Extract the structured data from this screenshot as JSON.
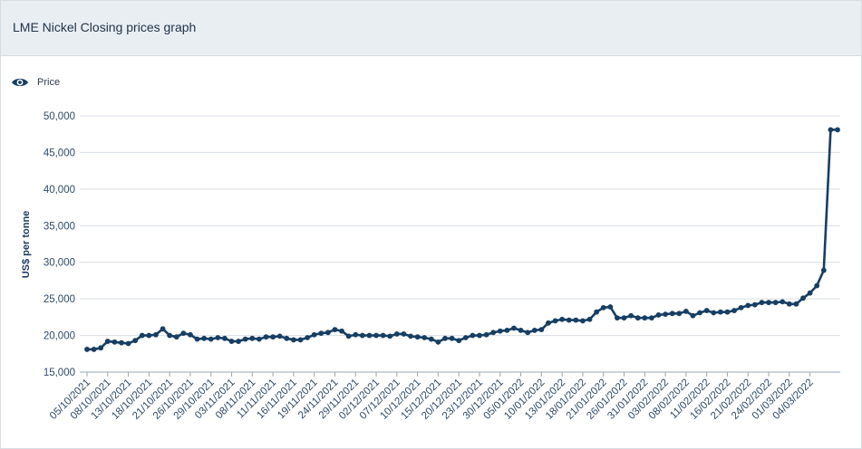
{
  "header": {
    "title": "LME Nickel Closing prices graph"
  },
  "legend": {
    "label": "Price",
    "icon": "eye-icon"
  },
  "colors": {
    "series": "#173e63",
    "grid": "#d9dee4",
    "axis": "#9aa7b4",
    "header_bg": "#e9eef3"
  },
  "chart_data": {
    "type": "line",
    "title": "LME Nickel Closing prices graph",
    "ylabel": "US$ per tonne",
    "xlabel": "",
    "ylim": [
      15000,
      50000
    ],
    "yticks": [
      15000,
      20000,
      25000,
      30000,
      35000,
      40000,
      45000,
      50000
    ],
    "ytick_labels": [
      "15,000",
      "20,000",
      "25,000",
      "30,000",
      "35,000",
      "40,000",
      "45,000",
      "50,000"
    ],
    "grid": true,
    "legend_position": "top-left",
    "xtick_labels": [
      "05/10/2021",
      "08/10/2021",
      "13/10/2021",
      "18/10/2021",
      "21/10/2021",
      "26/10/2021",
      "29/10/2021",
      "03/11/2021",
      "08/11/2021",
      "11/11/2021",
      "16/11/2021",
      "19/11/2021",
      "24/11/2021",
      "29/11/2021",
      "02/12/2021",
      "07/12/2021",
      "10/12/2021",
      "15/12/2021",
      "20/12/2021",
      "23/12/2021",
      "30/12/2021",
      "05/01/2022",
      "10/01/2022",
      "13/01/2022",
      "18/01/2022",
      "21/01/2022",
      "26/01/2022",
      "31/01/2022",
      "03/02/2022",
      "08/02/2022",
      "11/02/2022",
      "16/02/2022",
      "21/02/2022",
      "24/02/2022",
      "01/03/2022",
      "04/03/2022"
    ],
    "xtick_every": 3,
    "series": [
      {
        "name": "Price",
        "values": [
          18100,
          18100,
          18300,
          19200,
          19100,
          19000,
          18900,
          19300,
          20000,
          20000,
          20100,
          20900,
          20000,
          19800,
          20300,
          20100,
          19500,
          19600,
          19500,
          19700,
          19600,
          19200,
          19200,
          19500,
          19600,
          19500,
          19800,
          19800,
          19900,
          19600,
          19400,
          19400,
          19700,
          20100,
          20300,
          20400,
          20800,
          20600,
          19900,
          20100,
          20000,
          20000,
          20000,
          20000,
          19900,
          20200,
          20200,
          19900,
          19800,
          19700,
          19500,
          19100,
          19600,
          19600,
          19300,
          19700,
          20000,
          20000,
          20100,
          20400,
          20600,
          20700,
          21000,
          20700,
          20400,
          20700,
          20800,
          21700,
          22000,
          22200,
          22100,
          22100,
          22000,
          22200,
          23200,
          23800,
          23900,
          22400,
          22400,
          22700,
          22400,
          22400,
          22400,
          22800,
          22900,
          23000,
          23000,
          23300,
          22700,
          23100,
          23400,
          23100,
          23200,
          23200,
          23400,
          23800,
          24100,
          24200,
          24500,
          24500,
          24500,
          24600,
          24300,
          24300,
          25100,
          25800,
          26800,
          28900,
          48100,
          48100
        ]
      }
    ]
  }
}
